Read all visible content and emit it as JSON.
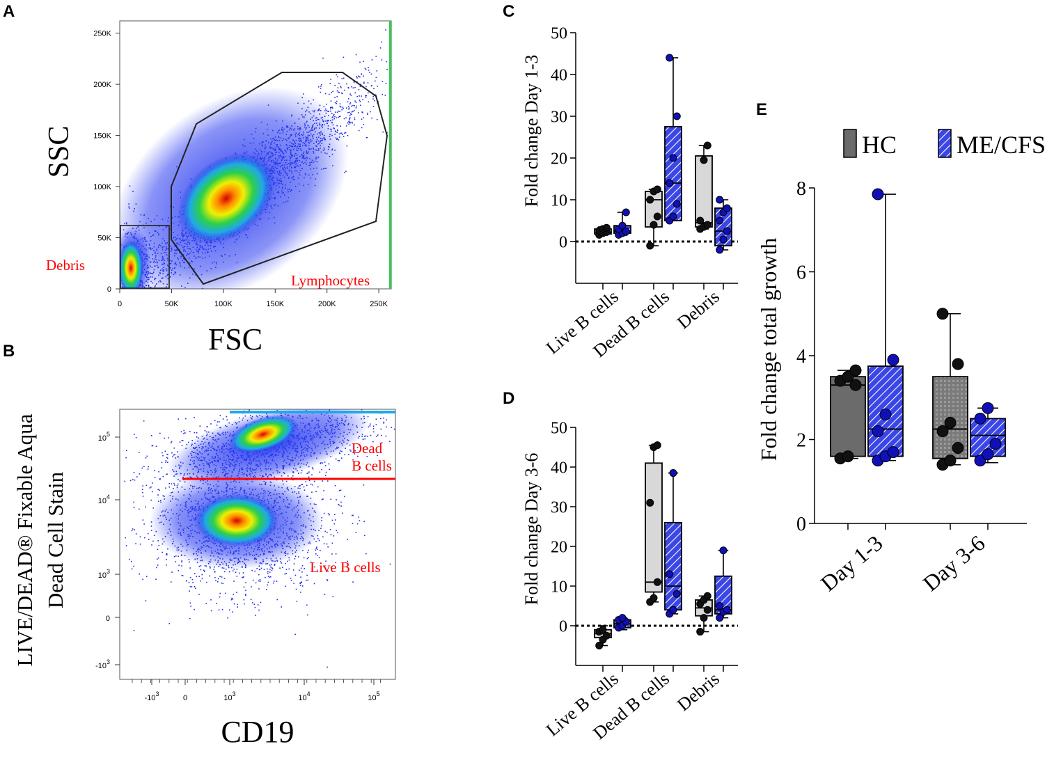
{
  "panels": {
    "a": "A",
    "b": "B",
    "c": "C",
    "d": "D",
    "e": "E"
  },
  "colors": {
    "hc_box": "#d8d8d8",
    "hc_box_dark": "#6b6b6b",
    "hc_box_dotted": "#8a8a8a",
    "mecfs_fill": "#3b46e6",
    "mecfs_point": "#1010b8",
    "hc_point": "#111111",
    "gate_line": "#ff0000",
    "gate_label": "#ff0000"
  },
  "chart_data": [
    {
      "id": "A",
      "type": "scatter",
      "subtype": "flow-cytometry-density",
      "xlabel": "FSC",
      "ylabel": "SSC",
      "x_ticks": [
        "0",
        "50K",
        "100K",
        "150K",
        "200K",
        "250K"
      ],
      "y_ticks": [
        "0",
        "50K",
        "100K",
        "150K",
        "200K",
        "250K"
      ],
      "xlim": [
        0,
        262000
      ],
      "ylim": [
        0,
        262000
      ],
      "gates": [
        {
          "label": "Debris",
          "shape": "rectangle",
          "x": [
            0,
            48000
          ],
          "y": [
            0,
            62000
          ]
        },
        {
          "label": "Lymphocytes",
          "shape": "polygon",
          "vertices": [
            [
              48000,
              100000
            ],
            [
              82000,
              170000
            ],
            [
              168000,
              210000
            ],
            [
              222000,
              208000
            ],
            [
              252000,
              175000
            ],
            [
              262000,
              145000
            ],
            [
              250000,
              65000
            ],
            [
              82000,
              5000
            ],
            [
              50000,
              40000
            ]
          ]
        }
      ],
      "populations": [
        {
          "label": "debris",
          "center": [
            12000,
            25000
          ]
        },
        {
          "label": "lymphocytes",
          "center": [
            115000,
            88000
          ]
        }
      ]
    },
    {
      "id": "B",
      "type": "scatter",
      "subtype": "flow-cytometry-density",
      "xlabel": "CD19",
      "ylabel_line1": "LIVE/DEAD® Fixable Aqua",
      "ylabel_line2": "Dead Cell Stain",
      "x_ticks": [
        {
          "base": "-10",
          "exp": "3"
        },
        {
          "base": "0",
          "exp": ""
        },
        {
          "base": "10",
          "exp": "3"
        },
        {
          "base": "10",
          "exp": "4"
        },
        {
          "base": "10",
          "exp": "5"
        }
      ],
      "y_ticks": [
        {
          "base": "-10",
          "exp": "3"
        },
        {
          "base": "0",
          "exp": ""
        },
        {
          "base": "10",
          "exp": "3"
        },
        {
          "base": "10",
          "exp": "4"
        },
        {
          "base": "10",
          "exp": "5"
        }
      ],
      "gate_threshold": "between 10^4 and 10^5 (horizontal line)",
      "gate_labels": {
        "dead_line1": "Dead",
        "dead_line2": "B cells",
        "live": "Live B cells"
      }
    },
    {
      "id": "C",
      "type": "box",
      "ylabel": "Fold change Day 1-3",
      "ylim": [
        -10,
        50
      ],
      "y_ticks": [
        0,
        10,
        20,
        30,
        40,
        50
      ],
      "zero_line": "dotted",
      "categories": [
        "Live B cells",
        "Dead B cells",
        "Debris"
      ],
      "series": [
        {
          "name": "HC",
          "boxes": [
            {
              "min": 1.5,
              "q1": 1.8,
              "median": 2.2,
              "q3": 3.0,
              "max": 3.5,
              "points": [
                1.6,
                2.0,
                2.3,
                2.6,
                3.0,
                3.3
              ]
            },
            {
              "min": -1.0,
              "q1": 3.5,
              "median": 10.0,
              "q3": 12.0,
              "max": 12.5,
              "points": [
                -1.0,
                4.0,
                6.0,
                10.0,
                12.0,
                12.5
              ]
            },
            {
              "min": 3.0,
              "q1": 3.5,
              "median": 4.5,
              "q3": 20.5,
              "max": 23.0,
              "points": [
                3.0,
                3.5,
                4.0,
                5.0,
                19.5,
                23.0
              ]
            }
          ]
        },
        {
          "name": "ME/CFS",
          "boxes": [
            {
              "min": 1.5,
              "q1": 2.0,
              "median": 2.5,
              "q3": 3.8,
              "max": 7.0,
              "points": [
                1.6,
                2.0,
                2.4,
                3.0,
                3.8,
                7.0
              ]
            },
            {
              "min": 5.0,
              "q1": 5.0,
              "median": 14.0,
              "q3": 27.5,
              "max": 44.0,
              "points": [
                5.0,
                6.0,
                9.0,
                14.0,
                20.0,
                30.0,
                44.0
              ]
            },
            {
              "min": -2.0,
              "q1": -1.0,
              "median": 2.5,
              "q3": 8.0,
              "max": 10.0,
              "points": [
                -2.0,
                0.5,
                2.5,
                5.0,
                7.0,
                8.0,
                10.0
              ]
            }
          ]
        }
      ]
    },
    {
      "id": "D",
      "type": "box",
      "ylabel": "Fold change Day 3-6",
      "ylim": [
        -10,
        50
      ],
      "y_ticks": [
        0,
        10,
        20,
        30,
        40,
        50
      ],
      "zero_line": "dotted",
      "categories": [
        "Live B cells",
        "Dead B cells",
        "Debris"
      ],
      "series": [
        {
          "name": "HC",
          "boxes": [
            {
              "min": -5.0,
              "q1": -3.0,
              "median": -2.0,
              "q3": -1.0,
              "max": 0.0,
              "points": [
                -5.0,
                -3.5,
                -2.5,
                -1.5,
                -1.0
              ]
            },
            {
              "min": 6.0,
              "q1": 8.5,
              "median": 11.0,
              "q3": 41.0,
              "max": 45.5,
              "points": [
                6.0,
                7.0,
                11.0,
                31.0,
                45.0,
                45.5
              ]
            },
            {
              "min": -1.5,
              "q1": 2.5,
              "median": 4.5,
              "q3": 6.5,
              "max": 7.5,
              "points": [
                -1.5,
                2.0,
                4.0,
                5.5,
                6.5,
                7.5
              ]
            }
          ]
        },
        {
          "name": "ME/CFS",
          "boxes": [
            {
              "min": -1.0,
              "q1": -0.5,
              "median": 0.5,
              "q3": 1.5,
              "max": 2.0,
              "points": [
                -0.5,
                0.0,
                1.0,
                1.5,
                2.0
              ]
            },
            {
              "min": 3.0,
              "q1": 4.0,
              "median": 10.0,
              "q3": 26.0,
              "max": 38.5,
              "points": [
                3.0,
                4.0,
                8.0,
                13.0,
                38.5
              ]
            },
            {
              "min": 2.0,
              "q1": 3.0,
              "median": 4.0,
              "q3": 12.5,
              "max": 19.0,
              "points": [
                2.0,
                3.5,
                4.0,
                5.0,
                19.0
              ]
            }
          ]
        }
      ]
    },
    {
      "id": "E",
      "type": "box",
      "ylabel": "Fold change total growth",
      "ylim": [
        0,
        8
      ],
      "y_ticks": [
        0,
        2,
        4,
        6,
        8
      ],
      "categories": [
        "Day 1-3",
        "Day 3-6"
      ],
      "legend": {
        "position": "top",
        "entries": [
          "HC",
          "ME/CFS"
        ]
      },
      "series": [
        {
          "name": "HC",
          "boxes": [
            {
              "min": 1.55,
              "q1": 1.6,
              "median": 3.3,
              "q3": 3.5,
              "max": 3.65,
              "points": [
                1.55,
                1.6,
                3.3,
                3.4,
                3.5,
                3.65
              ]
            },
            {
              "min": 1.4,
              "q1": 1.55,
              "median": 2.25,
              "q3": 3.5,
              "max": 5.0,
              "points": [
                1.4,
                1.5,
                1.8,
                2.2,
                2.4,
                3.8,
                5.0
              ]
            }
          ]
        },
        {
          "name": "ME/CFS",
          "boxes": [
            {
              "min": 1.5,
              "q1": 1.6,
              "median": 2.25,
              "q3": 3.75,
              "max": 7.85,
              "points": [
                1.5,
                1.6,
                1.7,
                2.2,
                2.6,
                3.9,
                7.85
              ]
            },
            {
              "min": 1.45,
              "q1": 1.6,
              "median": 2.1,
              "q3": 2.5,
              "max": 2.75,
              "points": [
                1.5,
                1.65,
                1.9,
                2.5,
                2.75
              ]
            }
          ]
        }
      ]
    }
  ]
}
